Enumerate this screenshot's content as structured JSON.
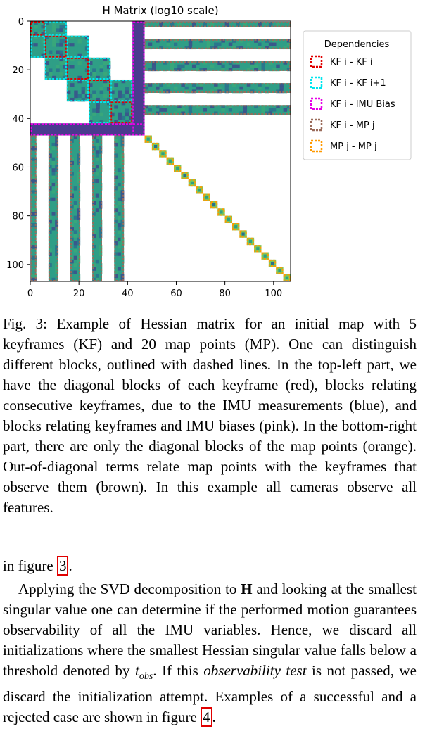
{
  "figure": {
    "title": "H Matrix (log10 scale)",
    "x_ticks": [
      "0",
      "20",
      "40",
      "60",
      "80",
      "100"
    ],
    "y_ticks": [
      "0",
      "20",
      "40",
      "60",
      "80",
      "100"
    ],
    "legend": {
      "title": "Dependencies",
      "items": [
        {
          "label": "KF i - KF i",
          "color": "#e00000"
        },
        {
          "label": "KF i - KF i+1",
          "color": "#00e5ee"
        },
        {
          "label": "KF i - IMU Bias",
          "color": "#e600e6"
        },
        {
          "label": "KF i - MP j",
          "color": "#9a6b5a"
        },
        {
          "label": "MP j - MP j",
          "color": "#ff9900"
        }
      ]
    },
    "colors": {
      "cell_base": "#2f9e86",
      "cell_alt": "#3aa879",
      "cell_dark": "#2a6f8e",
      "cell_light": "#79c95a",
      "deep": "#3b4c8c",
      "imu": "#4a3b8e"
    }
  },
  "caption": {
    "label": "Fig. 3:",
    "text": "Example of Hessian matrix for an initial map with 5 keyframes (KF) and 20 map points (MP). One can distinguish different blocks, outlined with dashed lines. In the top-left part, we have the diagonal blocks of each keyframe (red), blocks relating consecutive keyframes, due to the IMU measurements (blue), and blocks relating keyframes and IMU biases (pink). In the bottom-right part, there are only the diagonal blocks of the map points (orange). Out-of-diagonal terms relate map points with the keyframes that observe them (brown). In this example all cameras observe all features."
  },
  "body": {
    "line1_prefix": "in figure ",
    "line1_ref": "3",
    "line1_suffix": ".",
    "p2_a": "Applying the SVD decomposition to ",
    "p2_H": "H",
    "p2_b": " and looking at the smallest singular value one can determine if the performed motion guarantees observability of all the IMU variables. Hence, we discard all initializations where the smallest Hessian singular value falls below a threshold denoted by ",
    "p2_t": "t",
    "p2_sub": "obs",
    "p2_c": ". If this ",
    "p2_em": "observability test",
    "p2_d": " is not passed, we discard the initialization attempt. Examples of a successful and a rejected case are shown in figure ",
    "p2_ref": "4",
    "p2_e": "."
  }
}
